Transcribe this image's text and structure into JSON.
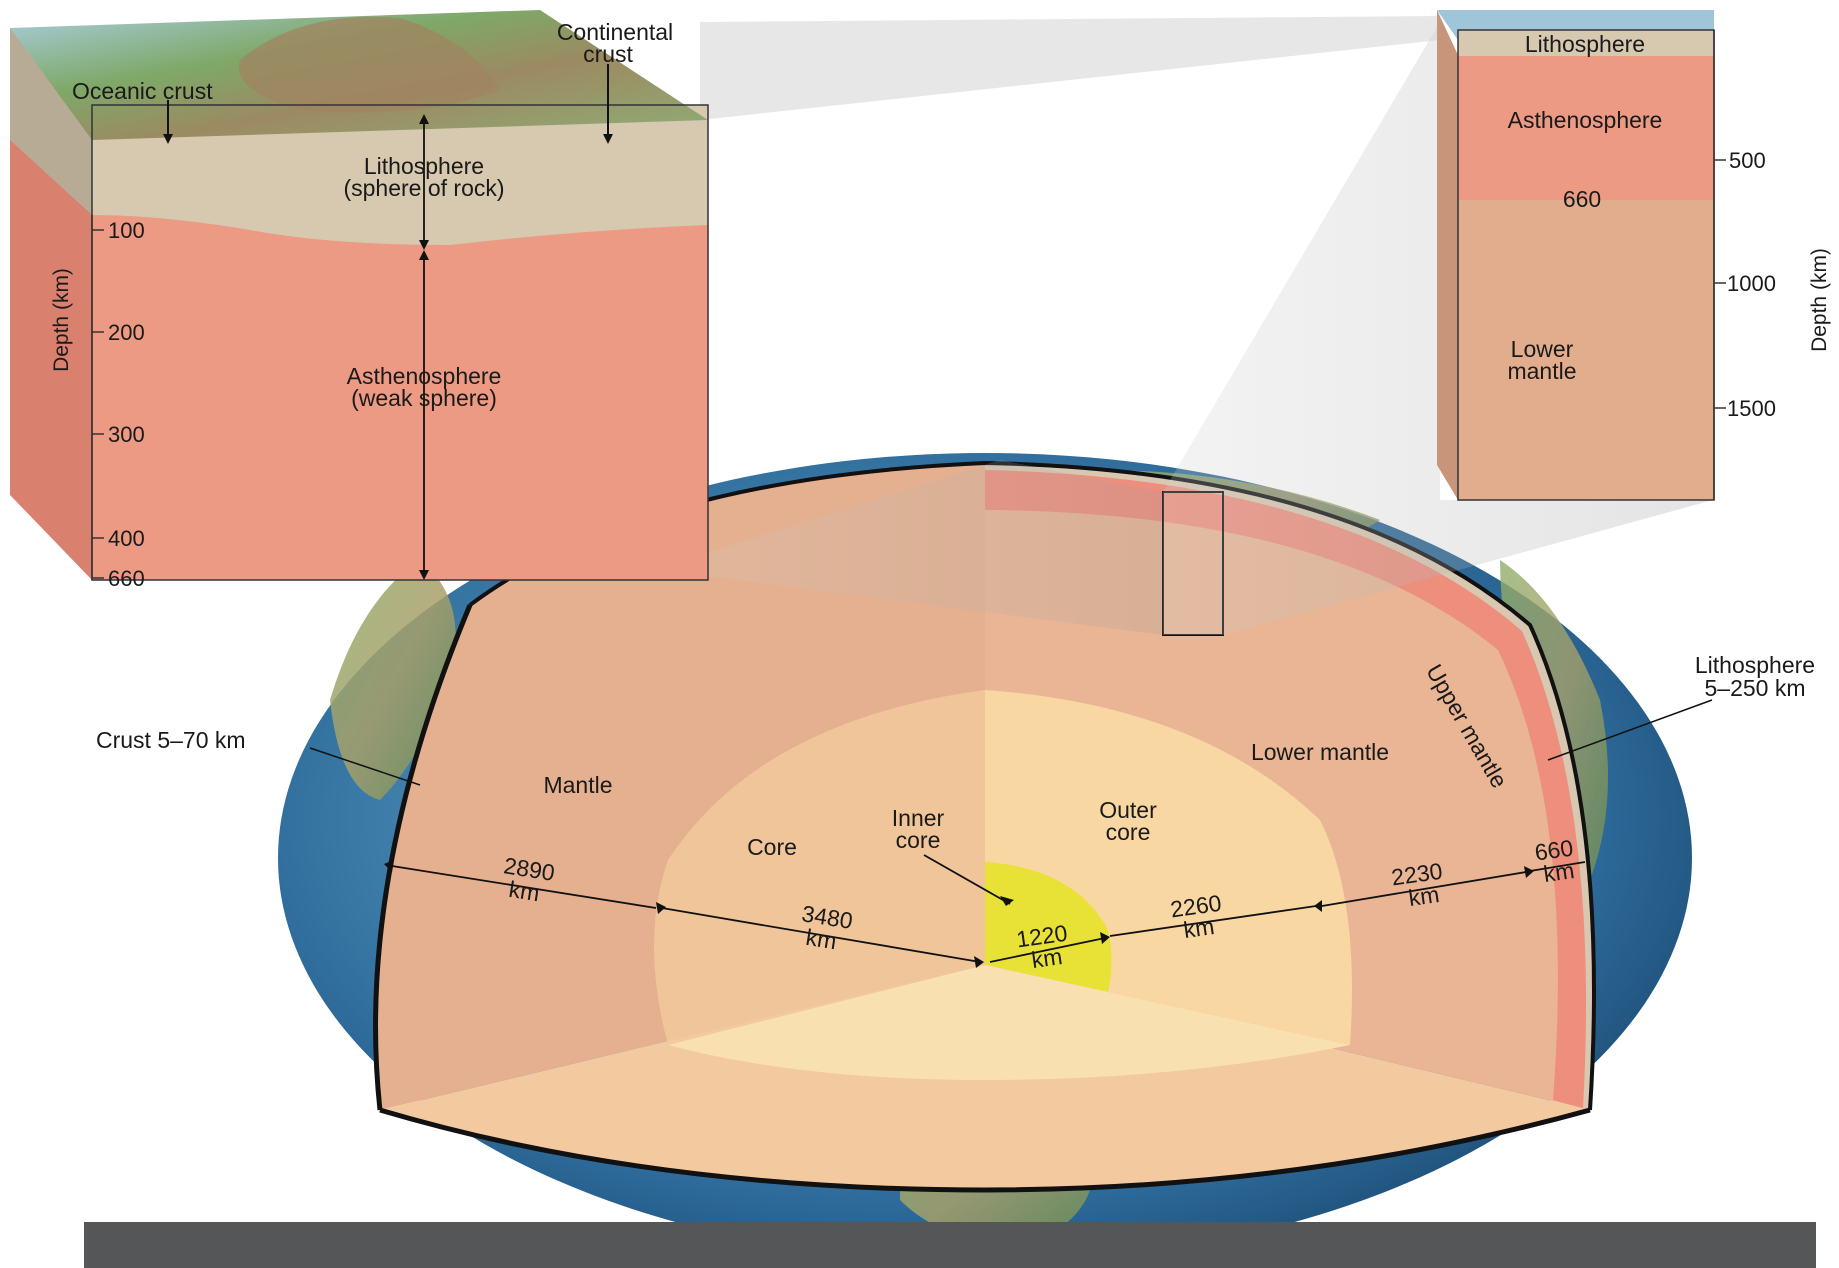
{
  "block_diagram": {
    "oceanic_crust": "Oceanic crust",
    "continental_crust": [
      "Continental",
      "crust"
    ],
    "lithosphere": [
      "Lithosphere",
      "(sphere of rock)"
    ],
    "asthenosphere": [
      "Asthenosphere",
      "(weak sphere)"
    ],
    "depth_axis_label": "Depth (km)",
    "depth_ticks": [
      "100",
      "200",
      "300",
      "400",
      "660"
    ]
  },
  "column_diagram": {
    "lithosphere": "Lithosphere",
    "asthenosphere": "Asthenosphere",
    "boundary": "660",
    "lower_mantle": [
      "Lower",
      "mantle"
    ],
    "depth_axis_label": "Depth (km)",
    "depth_ticks": [
      "500",
      "1000",
      "1500"
    ]
  },
  "earth_cutaway": {
    "crust": "Crust 5–70 km",
    "lithosphere": [
      "Lithosphere",
      "5–250 km"
    ],
    "upper_mantle": "Upper mantle",
    "lower_mantle": "Lower mantle",
    "mantle": "Mantle",
    "core": "Core",
    "inner_core": [
      "Inner",
      "core"
    ],
    "outer_core": [
      "Outer",
      "core"
    ],
    "dimensions": {
      "mantle_thickness": [
        "2890",
        "km"
      ],
      "core_radius": [
        "3480",
        "km"
      ],
      "inner_core_radius": [
        "1220",
        "km"
      ],
      "outer_core_thickness": [
        "2260",
        "km"
      ],
      "lower_mantle_thickness": [
        "2230",
        "km"
      ],
      "upper_mantle_thickness": [
        "660",
        "km"
      ]
    }
  },
  "colors": {
    "asthenosphere": "#ec9a84",
    "lithosphere": "#d8c8b2",
    "lower_mantle": "#e2ad8c",
    "mantle_cut": "#e8b592",
    "outer_core": "#f7d6a0",
    "inner_core": "#e6e033",
    "ocean": "#3d7fb8",
    "land": "#7a9a58",
    "footer_bar": "#555657"
  }
}
